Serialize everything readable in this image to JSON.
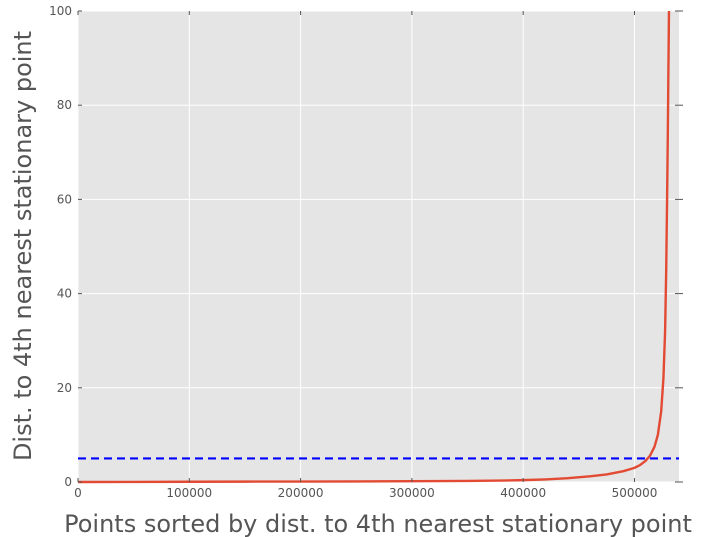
{
  "chart_data": {
    "type": "line",
    "title": "",
    "xlabel": "Points sorted by dist. to 4th nearest stationary point",
    "ylabel": "Dist. to 4th nearest stationary point",
    "xlim": [
      0,
      540000
    ],
    "ylim": [
      0,
      100
    ],
    "xticks": [
      0,
      100000,
      200000,
      300000,
      400000,
      500000
    ],
    "xtick_labels": [
      "0",
      "100000",
      "200000",
      "300000",
      "400000",
      "500000"
    ],
    "yticks": [
      0,
      20,
      40,
      60,
      80,
      100
    ],
    "ytick_labels": [
      "0",
      "20",
      "40",
      "60",
      "80",
      "100"
    ],
    "grid": true,
    "background_color": "#e5e5e5",
    "grid_color": "#ffffff",
    "series": [
      {
        "style": "solid",
        "color": "#e24a33",
        "x": [
          0,
          50000,
          100000,
          150000,
          200000,
          250000,
          300000,
          350000,
          380000,
          400000,
          420000,
          440000,
          460000,
          475000,
          490000,
          500000,
          505000,
          510000,
          514000,
          518000,
          521000,
          524000,
          526000,
          527500,
          528500,
          529300,
          530000,
          530500,
          531000
        ],
        "y": [
          0.0,
          0.02,
          0.05,
          0.08,
          0.1,
          0.13,
          0.17,
          0.23,
          0.3,
          0.4,
          0.55,
          0.8,
          1.2,
          1.6,
          2.3,
          3.0,
          3.6,
          4.5,
          5.6,
          7.5,
          10.0,
          15.0,
          22.0,
          32.0,
          45.0,
          60.0,
          75.0,
          88.0,
          100.0
        ]
      },
      {
        "style": "dashed",
        "color": "#0000ff",
        "x": [
          0,
          540000
        ],
        "y": [
          5,
          5
        ]
      }
    ]
  }
}
